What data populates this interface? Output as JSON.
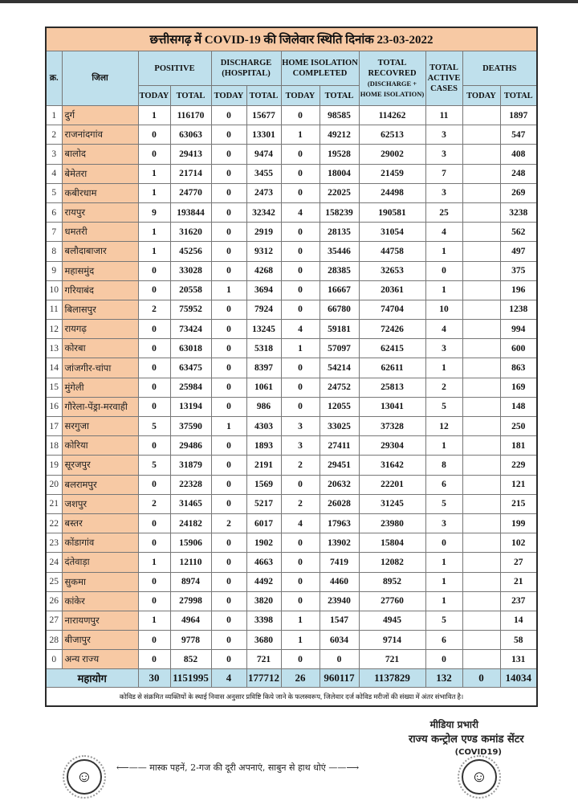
{
  "title": "छत्तीसगढ़ में COVID-19 की जिलेवार स्थिति दिनांक 23-03-2022",
  "headers": {
    "no": "क्र.",
    "district": "जिला",
    "positive": "POSITIVE",
    "discharge": "DISCHARGE (HOSPITAL)",
    "home": "HOME ISOLATION COMPLETED",
    "recovered": "TOTAL RECOVRED",
    "recovered_sub": "(DISCHARGE + HOME ISOLATION)",
    "active": "TOTAL ACTIVE CASES",
    "deaths": "DEATHS",
    "today": "TODAY",
    "total": "TOTAL"
  },
  "rows": [
    [
      "1",
      "दुर्ग",
      "1",
      "116170",
      "0",
      "15677",
      "0",
      "98585",
      "114262",
      "11",
      "",
      "1897"
    ],
    [
      "2",
      "राजनांदगांव",
      "0",
      "63063",
      "0",
      "13301",
      "1",
      "49212",
      "62513",
      "3",
      "",
      "547"
    ],
    [
      "3",
      "बालोद",
      "0",
      "29413",
      "0",
      "9474",
      "0",
      "19528",
      "29002",
      "3",
      "",
      "408"
    ],
    [
      "4",
      "बेमेतरा",
      "1",
      "21714",
      "0",
      "3455",
      "0",
      "18004",
      "21459",
      "7",
      "",
      "248"
    ],
    [
      "5",
      "कबीरधाम",
      "1",
      "24770",
      "0",
      "2473",
      "0",
      "22025",
      "24498",
      "3",
      "",
      "269"
    ],
    [
      "6",
      "रायपुर",
      "9",
      "193844",
      "0",
      "32342",
      "4",
      "158239",
      "190581",
      "25",
      "",
      "3238"
    ],
    [
      "7",
      "धमतरी",
      "1",
      "31620",
      "0",
      "2919",
      "0",
      "28135",
      "31054",
      "4",
      "",
      "562"
    ],
    [
      "8",
      "बलौदाबाजार",
      "1",
      "45256",
      "0",
      "9312",
      "0",
      "35446",
      "44758",
      "1",
      "",
      "497"
    ],
    [
      "9",
      "महासमुंद",
      "0",
      "33028",
      "0",
      "4268",
      "0",
      "28385",
      "32653",
      "0",
      "",
      "375"
    ],
    [
      "10",
      "गरियाबंद",
      "0",
      "20558",
      "1",
      "3694",
      "0",
      "16667",
      "20361",
      "1",
      "",
      "196"
    ],
    [
      "11",
      "बिलासपुर",
      "2",
      "75952",
      "0",
      "7924",
      "0",
      "66780",
      "74704",
      "10",
      "",
      "1238"
    ],
    [
      "12",
      "रायगढ़",
      "0",
      "73424",
      "0",
      "13245",
      "4",
      "59181",
      "72426",
      "4",
      "",
      "994"
    ],
    [
      "13",
      "कोरबा",
      "0",
      "63018",
      "0",
      "5318",
      "1",
      "57097",
      "62415",
      "3",
      "",
      "600"
    ],
    [
      "14",
      "जांजगीर-चांपा",
      "0",
      "63475",
      "0",
      "8397",
      "0",
      "54214",
      "62611",
      "1",
      "",
      "863"
    ],
    [
      "15",
      "मुंगेली",
      "0",
      "25984",
      "0",
      "1061",
      "0",
      "24752",
      "25813",
      "2",
      "",
      "169"
    ],
    [
      "16",
      "गौरेला-पेंड्रा-मरवाही",
      "0",
      "13194",
      "0",
      "986",
      "0",
      "12055",
      "13041",
      "5",
      "",
      "148"
    ],
    [
      "17",
      "सरगुजा",
      "5",
      "37590",
      "1",
      "4303",
      "3",
      "33025",
      "37328",
      "12",
      "",
      "250"
    ],
    [
      "18",
      "कोरिया",
      "0",
      "29486",
      "0",
      "1893",
      "3",
      "27411",
      "29304",
      "1",
      "",
      "181"
    ],
    [
      "19",
      "सूरजपुर",
      "5",
      "31879",
      "0",
      "2191",
      "2",
      "29451",
      "31642",
      "8",
      "",
      "229"
    ],
    [
      "20",
      "बलरामपुर",
      "0",
      "22328",
      "0",
      "1569",
      "0",
      "20632",
      "22201",
      "6",
      "",
      "121"
    ],
    [
      "21",
      "जशपुर",
      "2",
      "31465",
      "0",
      "5217",
      "2",
      "26028",
      "31245",
      "5",
      "",
      "215"
    ],
    [
      "22",
      "बस्तर",
      "0",
      "24182",
      "2",
      "6017",
      "4",
      "17963",
      "23980",
      "3",
      "",
      "199"
    ],
    [
      "23",
      "कोंडागांव",
      "0",
      "15906",
      "0",
      "1902",
      "0",
      "13902",
      "15804",
      "0",
      "",
      "102"
    ],
    [
      "24",
      "दंतेवाड़ा",
      "1",
      "12110",
      "0",
      "4663",
      "0",
      "7419",
      "12082",
      "1",
      "",
      "27"
    ],
    [
      "25",
      "सुकमा",
      "0",
      "8974",
      "0",
      "4492",
      "0",
      "4460",
      "8952",
      "1",
      "",
      "21"
    ],
    [
      "26",
      "कांकेर",
      "0",
      "27998",
      "0",
      "3820",
      "0",
      "23940",
      "27760",
      "1",
      "",
      "237"
    ],
    [
      "27",
      "नारायणपुर",
      "1",
      "4964",
      "0",
      "3398",
      "1",
      "1547",
      "4945",
      "5",
      "",
      "14"
    ],
    [
      "28",
      "बीजापुर",
      "0",
      "9778",
      "0",
      "3680",
      "1",
      "6034",
      "9714",
      "6",
      "",
      "58"
    ],
    [
      "0",
      "अन्य राज्य",
      "0",
      "852",
      "0",
      "721",
      "0",
      "0",
      "721",
      "0",
      "",
      "131"
    ]
  ],
  "total": {
    "label": "महायोग",
    "values": [
      "30",
      "1151995",
      "4",
      "177712",
      "26",
      "960117",
      "1137829",
      "132",
      "0",
      "14034"
    ]
  },
  "note": "कोविड से संक्रमित व्यक्तियों के स्थाई निवास अनुसार प्रविष्टि किये जाने के फलस्वरूप, जिलेवार दर्ज कोविड मरीजों की संख्या में अंतर संभावित है।",
  "signature": {
    "line1": "मीडिया प्रभारी",
    "line2": "राज्य कन्ट्रोल एण्ड कमांड सेंटर",
    "line3": "(COVID19)"
  },
  "slogan": "मास्क पहनें, 2-गज की दूरी अपनाएं, साबुन से हाथ धोएं",
  "colors": {
    "title_bg": "#f7c9a4",
    "header_bg": "#bfe0ec",
    "district_bg": "#f7c9a4"
  }
}
